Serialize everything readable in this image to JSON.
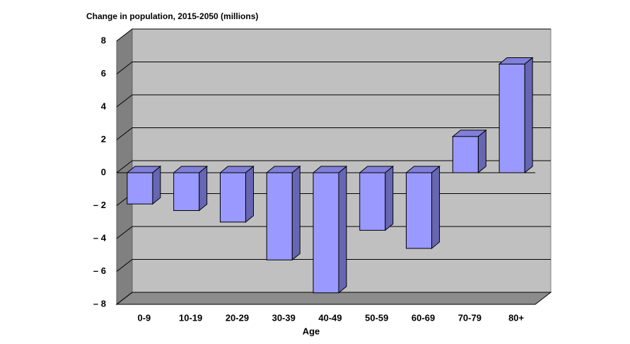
{
  "chart_data": {
    "type": "bar3d",
    "title": "Change in population, 2015-2050  (millions)",
    "x_label": "Age",
    "categories": [
      "0-9",
      "10-19",
      "20-29",
      "30-39",
      "40-49",
      "50-59",
      "60-69",
      "70-79",
      "80+"
    ],
    "values": [
      -1.9,
      -2.3,
      -3.0,
      -5.3,
      -7.3,
      -3.5,
      -4.6,
      2.2,
      6.6
    ],
    "color": "#9999ff",
    "ylim": [
      -8,
      8
    ],
    "yticks": [
      8,
      6,
      4,
      2,
      0,
      {
        "value": -2,
        "label": "– 2"
      },
      {
        "value": -4,
        "label": "– 4"
      },
      {
        "value": -6,
        "label": "– 6"
      },
      {
        "value": -8,
        "label": "– 8"
      }
    ],
    "grid": true
  }
}
